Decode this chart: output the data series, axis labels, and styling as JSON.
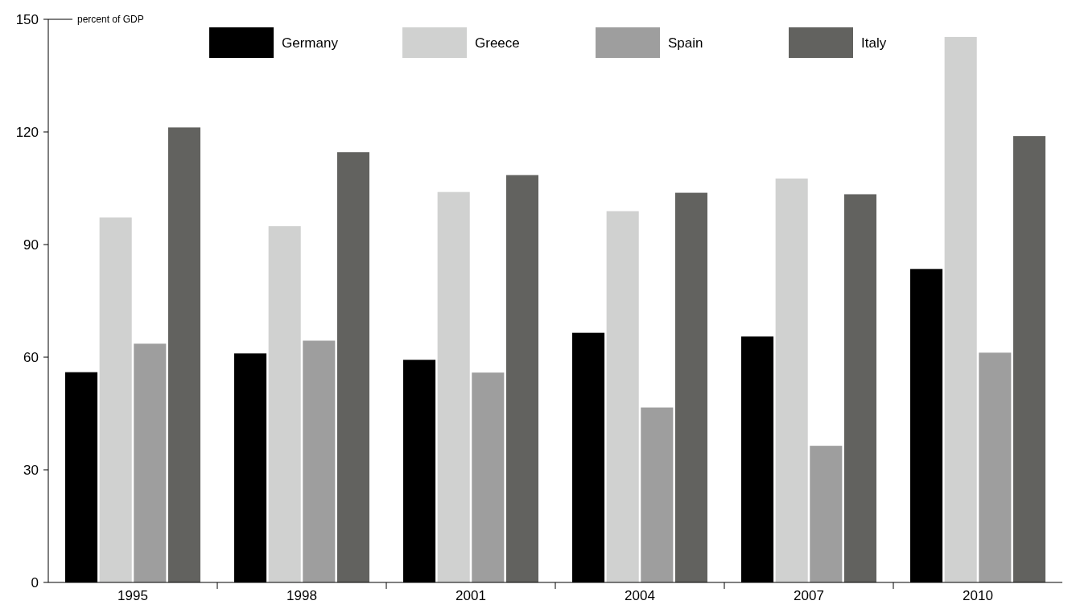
{
  "chart_data": {
    "type": "bar",
    "ylabel": "percent of GDP",
    "categories": [
      "1995",
      "1998",
      "2001",
      "2004",
      "2007",
      "2010"
    ],
    "series": [
      {
        "name": "Germany",
        "color": "#000000",
        "values": [
          56,
          61,
          59.3,
          66.5,
          65.5,
          83.5
        ]
      },
      {
        "name": "Greece",
        "color": "#d0d1d0",
        "values": [
          97.2,
          94.9,
          104,
          98.9,
          107.6,
          145.3
        ]
      },
      {
        "name": "Spain",
        "color": "#9e9e9e",
        "values": [
          63.6,
          64.4,
          55.9,
          46.6,
          36.4,
          61.2
        ]
      },
      {
        "name": "Italy",
        "color": "#62625f",
        "values": [
          121.2,
          114.6,
          108.5,
          103.8,
          103.4,
          118.9
        ]
      }
    ],
    "ylim": [
      0,
      150
    ],
    "yticks": [
      0,
      30,
      60,
      90,
      120,
      150
    ],
    "grid": false,
    "legend": "top"
  }
}
